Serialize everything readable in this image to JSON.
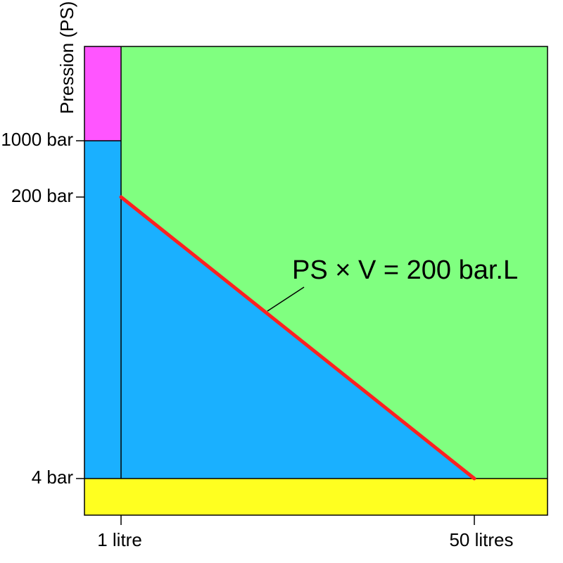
{
  "chart_data": {
    "type": "area",
    "title": "",
    "ylabel": "Pression (PS)",
    "xlabel": "",
    "y_ticks": [
      {
        "value": 1000,
        "label": "1000 bar"
      },
      {
        "value": 200,
        "label": "200 bar"
      },
      {
        "value": 4,
        "label": "4 bar"
      }
    ],
    "x_ticks": [
      {
        "value": 1,
        "label": "1 litre"
      },
      {
        "value": 50,
        "label": "50 litres"
      }
    ],
    "curve": {
      "label": "PS × V = 200 bar.L",
      "color": "#ff2020",
      "points": [
        {
          "x": 1,
          "y": 200
        },
        {
          "x": 50,
          "y": 4
        }
      ]
    },
    "regions": [
      {
        "name": "magenta",
        "color": "#ff55ff"
      },
      {
        "name": "blue",
        "color": "#1ab0ff"
      },
      {
        "name": "green",
        "color": "#80ff80"
      },
      {
        "name": "yellow",
        "color": "#ffff20"
      }
    ]
  }
}
